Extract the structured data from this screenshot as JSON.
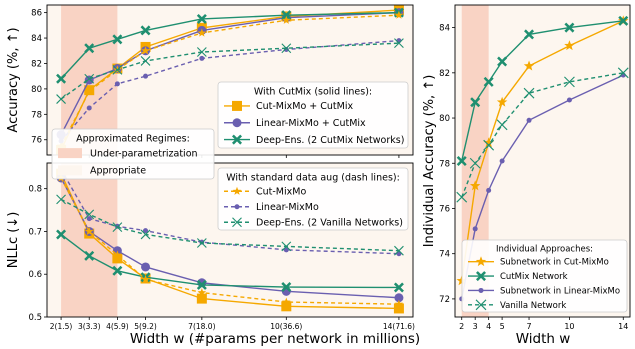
{
  "figure": {
    "left_xlabel": "Width w (#params per network in millions)",
    "right_xlabel": "Width w"
  },
  "colors": {
    "cutmixmo": "#f5a800",
    "linearmixmo": "#6a5fb0",
    "deepens": "#1f8f70",
    "under_region": "#f9d3c4",
    "appropriate_region": "#fdf6ef"
  },
  "legends": {
    "regimes": {
      "title": "Approximated Regimes:",
      "items": [
        "Under-parametrization",
        "Appropriate"
      ]
    },
    "cutmix": {
      "title": "With CutMix (solid lines):",
      "items": [
        "Cut-MixMo + CutMix",
        "Linear-MixMo + CutMix",
        "Deep-Ens. (2 CutMix Networks)"
      ]
    },
    "standard": {
      "title": "With standard data aug (dash lines):",
      "items": [
        "Cut-MixMo",
        "Linear-MixMo",
        "Deep-Ens. (2 Vanilla Networks)"
      ]
    },
    "individual": {
      "title": "Individual Approaches:",
      "items": [
        "Subnetwork in Cut-MixMo",
        "CutMix Network",
        "Subnetwork in Linear-MixMo",
        "Vanilla Network"
      ]
    }
  },
  "chart_data": [
    {
      "type": "line",
      "ylabel": "Accuracy (%, ↑)",
      "x": [
        2,
        3,
        4,
        5,
        7,
        10,
        14
      ],
      "xticklabels": [],
      "ylim": [
        74.8,
        86.6
      ],
      "yticks": [
        76,
        78,
        80,
        82,
        84,
        86
      ],
      "under_region": [
        2,
        4
      ],
      "series": [
        {
          "name": "Cut-MixMo + CutMix",
          "values": [
            75.2,
            79.9,
            81.6,
            83.3,
            84.8,
            85.7,
            86.2
          ]
        },
        {
          "name": "Linear-MixMo + CutMix",
          "values": [
            76.4,
            80.7,
            81.6,
            83.0,
            84.6,
            85.6,
            86.0
          ]
        },
        {
          "name": "Deep-Ens. (2 CutMix Networks)",
          "values": [
            80.8,
            83.2,
            83.9,
            84.6,
            85.5,
            85.8,
            86.0
          ]
        },
        {
          "name": "Cut-MixMo",
          "values": [
            75.5,
            79.8,
            81.5,
            83.0,
            84.4,
            85.4,
            85.8
          ]
        },
        {
          "name": "Linear-MixMo",
          "values": [
            75.9,
            78.5,
            80.4,
            81.0,
            82.4,
            83.1,
            83.8
          ]
        },
        {
          "name": "Deep-Ens. (2 Vanilla Networks)",
          "values": [
            79.2,
            80.8,
            81.5,
            82.2,
            82.9,
            83.2,
            83.6
          ]
        }
      ]
    },
    {
      "type": "line",
      "ylabel": "NLLc (↓)",
      "x": [
        2,
        3,
        4,
        5,
        7,
        10,
        14
      ],
      "xticklabels": [
        "2(1.5)",
        "3(3.3)",
        "4(5.9)",
        "5(9.2)",
        "7(18.0)",
        "10(36.6)",
        "14(71.6)"
      ],
      "ylim": [
        0.5,
        0.86
      ],
      "yticks": [
        0.5,
        0.6,
        0.7,
        0.8
      ],
      "under_region": [
        2,
        4
      ],
      "series": [
        {
          "name": "Cut-MixMo + CutMix",
          "values": [
            0.835,
            0.695,
            0.637,
            0.59,
            0.543,
            0.525,
            0.52
          ]
        },
        {
          "name": "Linear-MixMo + CutMix",
          "values": [
            0.825,
            0.7,
            0.655,
            0.617,
            0.58,
            0.56,
            0.545
          ]
        },
        {
          "name": "Deep-Ens. (2 CutMix Networks)",
          "values": [
            0.693,
            0.643,
            0.608,
            0.593,
            0.575,
            0.57,
            0.569
          ]
        },
        {
          "name": "Cut-MixMo",
          "values": [
            0.825,
            0.7,
            0.645,
            0.588,
            0.557,
            0.535,
            0.53
          ]
        },
        {
          "name": "Linear-MixMo",
          "values": [
            0.845,
            0.73,
            0.712,
            0.702,
            0.675,
            0.657,
            0.648
          ]
        },
        {
          "name": "Deep-Ens. (2 Vanilla Networks)",
          "values": [
            0.775,
            0.74,
            0.71,
            0.693,
            0.673,
            0.665,
            0.655
          ]
        }
      ]
    },
    {
      "type": "line",
      "ylabel": "Individual Accuracy (%, ↑)",
      "x": [
        2,
        3,
        4,
        5,
        7,
        10,
        14
      ],
      "xticklabels": [
        "2",
        "3",
        "4",
        "5",
        "7",
        "10",
        "14"
      ],
      "ylim": [
        71.2,
        85.0
      ],
      "yticks": [
        72,
        74,
        76,
        78,
        80,
        82,
        84
      ],
      "under_region": [
        2,
        4
      ],
      "series": [
        {
          "name": "Subnetwork in Cut-MixMo",
          "values": [
            72.8,
            77.0,
            78.9,
            80.7,
            82.3,
            83.2,
            84.3
          ]
        },
        {
          "name": "CutMix Network",
          "values": [
            78.1,
            80.7,
            81.6,
            82.5,
            83.7,
            84.0,
            84.3
          ]
        },
        {
          "name": "Subnetwork in Linear-MixMo",
          "values": [
            72.0,
            75.1,
            76.8,
            78.1,
            79.9,
            80.8,
            81.9
          ]
        },
        {
          "name": "Vanilla Network",
          "values": [
            76.5,
            78.0,
            78.8,
            79.7,
            81.1,
            81.6,
            82.0
          ]
        }
      ]
    }
  ]
}
